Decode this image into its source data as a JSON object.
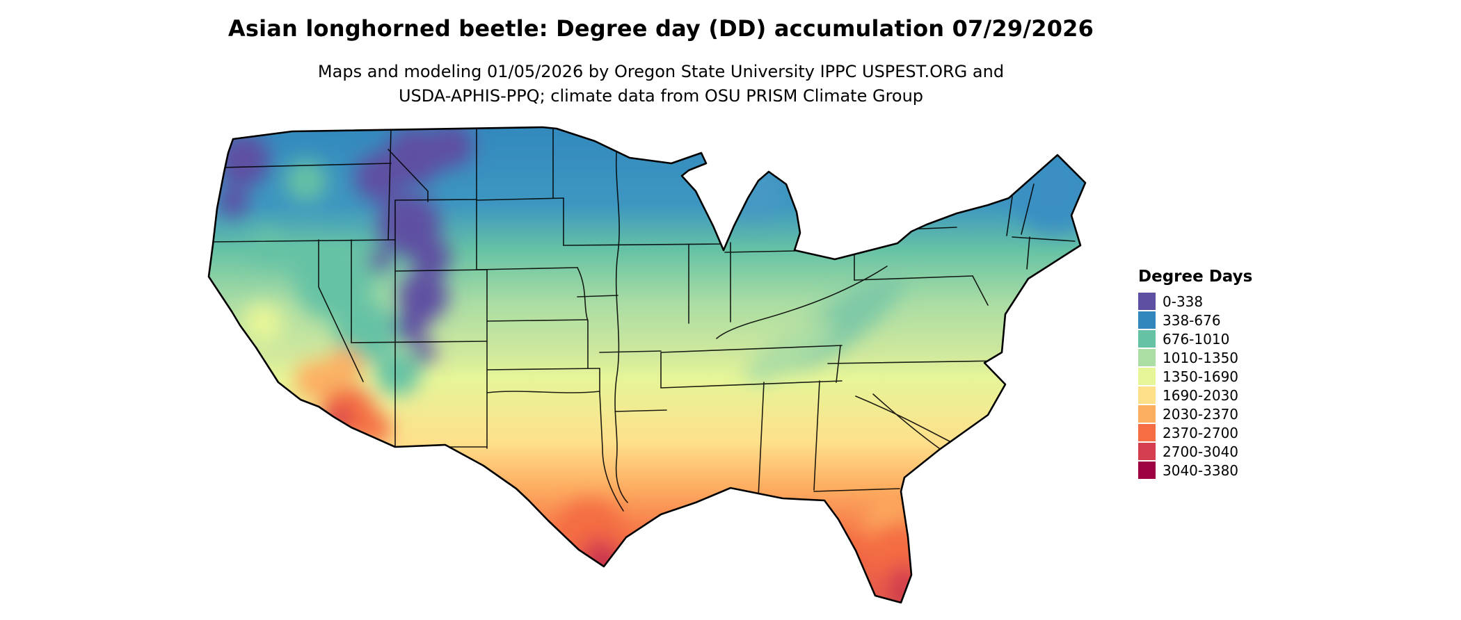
{
  "header": {
    "title": "Asian longhorned beetle: Degree day (DD) accumulation 07/29/2026",
    "subtitle_line1": "Maps and modeling 01/05/2026 by Oregon State University IPPC USPEST.ORG and",
    "subtitle_line2": "USDA-APHIS-PPQ; climate data from OSU PRISM Climate Group"
  },
  "legend": {
    "title": "Degree Days",
    "items": [
      {
        "label": "0-338",
        "color": "#5e4fa2"
      },
      {
        "label": "338-676",
        "color": "#3288bd"
      },
      {
        "label": "676-1010",
        "color": "#66c2a5"
      },
      {
        "label": "1010-1350",
        "color": "#abdda4"
      },
      {
        "label": "1350-1690",
        "color": "#e6f598"
      },
      {
        "label": "1690-2030",
        "color": "#fee08b"
      },
      {
        "label": "2030-2370",
        "color": "#fdae61"
      },
      {
        "label": "2370-2700",
        "color": "#f46d43"
      },
      {
        "label": "2700-3040",
        "color": "#d53e4f"
      },
      {
        "label": "3040-3380",
        "color": "#9e0142"
      }
    ]
  },
  "map": {
    "region": "Continental United States"
  },
  "chart_data": {
    "type": "heatmap",
    "title": "Asian longhorned beetle: Degree day (DD) accumulation 07/29/2026",
    "legend_title": "Degree Days",
    "region": "Continental United States",
    "units": "degree days",
    "bins": [
      {
        "range": "0-338",
        "color": "#5e4fa2"
      },
      {
        "range": "338-676",
        "color": "#3288bd"
      },
      {
        "range": "676-1010",
        "color": "#66c2a5"
      },
      {
        "range": "1010-1350",
        "color": "#abdda4"
      },
      {
        "range": "1350-1690",
        "color": "#e6f598"
      },
      {
        "range": "1690-2030",
        "color": "#fee08b"
      },
      {
        "range": "2030-2370",
        "color": "#fdae61"
      },
      {
        "range": "2370-2700",
        "color": "#f46d43"
      },
      {
        "range": "2700-3040",
        "color": "#d53e4f"
      },
      {
        "range": "3040-3380",
        "color": "#9e0142"
      }
    ],
    "pattern_notes": "Cool bins (purple/blue) across the northern tier, Rockies, Cascades and New England; mid green/yellow bins across the central U.S.; warm orange/red bins across southern Texas, low-desert Arizona, the Gulf Coast and peninsular Florida (darkest red at south Texas and south Florida)."
  }
}
